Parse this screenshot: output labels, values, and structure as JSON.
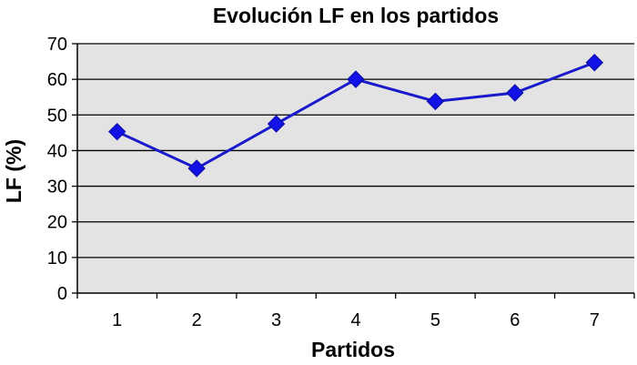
{
  "chart_data": {
    "type": "line",
    "title": "Evolución LF en los partidos",
    "xlabel": "Partidos",
    "ylabel": "LF (%)",
    "categories": [
      "1",
      "2",
      "3",
      "4",
      "5",
      "6",
      "7"
    ],
    "series": [
      {
        "values": [
          45.3,
          35.0,
          47.5,
          60.0,
          53.8,
          56.2,
          64.7
        ]
      }
    ],
    "ylim": [
      0,
      70
    ],
    "yticks": [
      0,
      10,
      20,
      30,
      40,
      50,
      60,
      70
    ],
    "grid": true,
    "legend": "none",
    "colors": {
      "line": "#1a1acc",
      "marker": "#1212e6",
      "plot_background": "#e3e3e3",
      "gridline": "#000000"
    },
    "marker": "diamond"
  }
}
